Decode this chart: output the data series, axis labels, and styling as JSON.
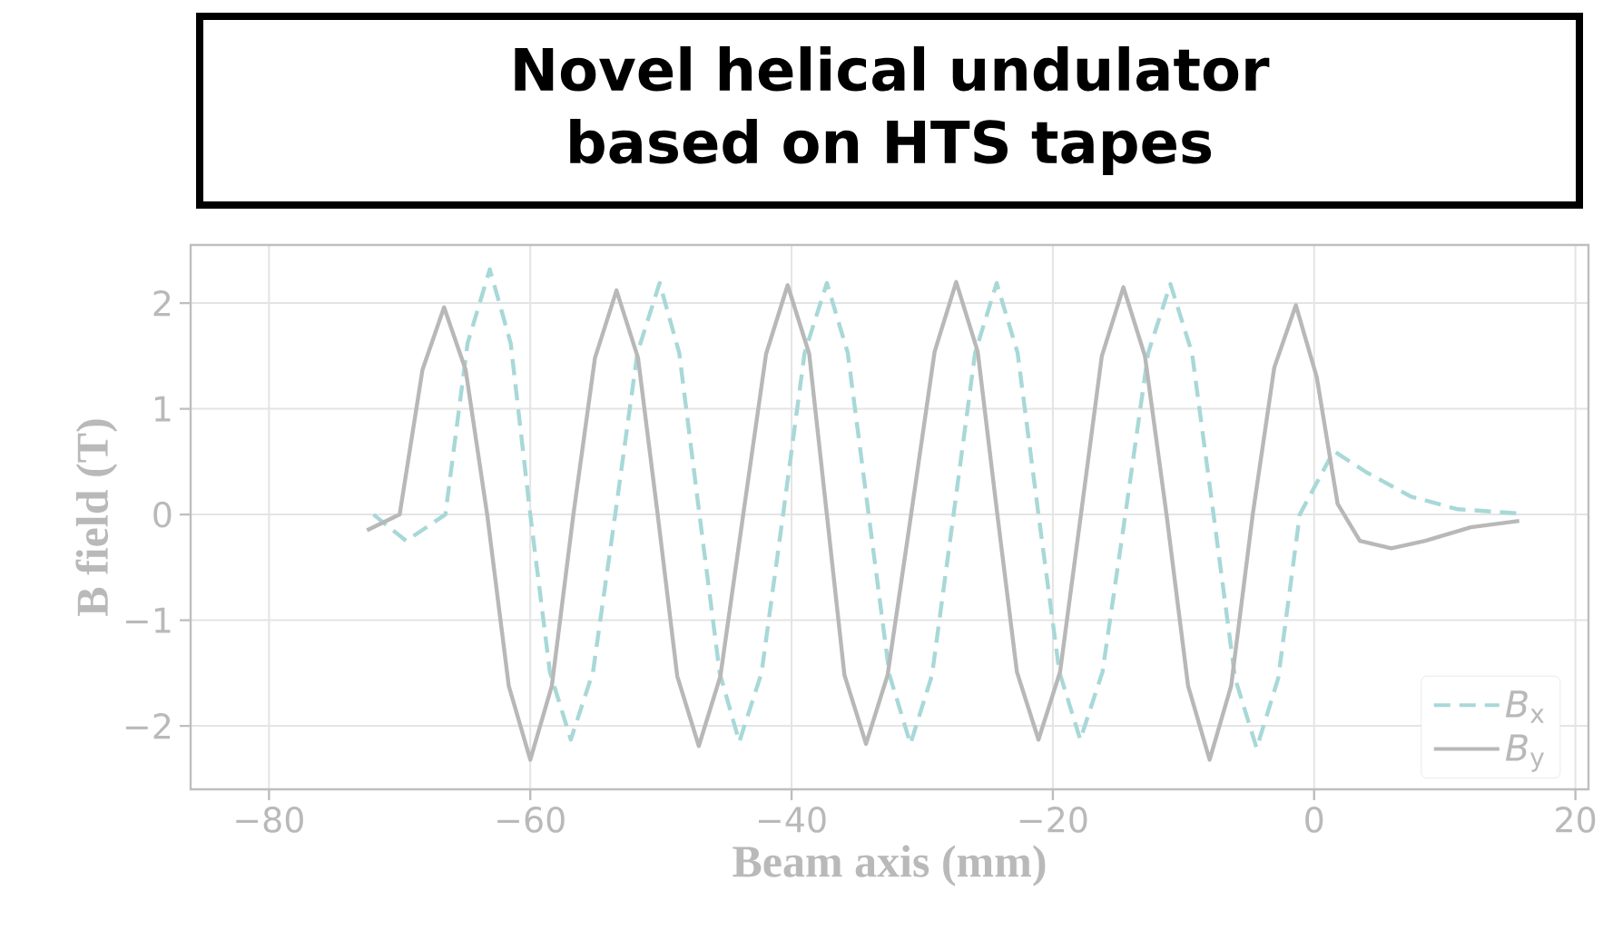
{
  "chart_data": {
    "type": "line",
    "xlabel": "Beam axis (mm)",
    "ylabel": "B field (T)",
    "annotations": [
      "Novel helical undulator based on HTS tapes"
    ],
    "xlim": [
      -86,
      21
    ],
    "ylim": [
      -2.6,
      2.55
    ],
    "xticks": [
      {
        "value": -80,
        "label": "−80"
      },
      {
        "value": -60,
        "label": "−60"
      },
      {
        "value": -40,
        "label": "−40"
      },
      {
        "value": -20,
        "label": "−20"
      },
      {
        "value": 0,
        "label": "0"
      },
      {
        "value": 20,
        "label": "20"
      }
    ],
    "yticks": [
      {
        "value": -2,
        "label": "−2"
      },
      {
        "value": -1,
        "label": "−1"
      },
      {
        "value": 0,
        "label": "0"
      },
      {
        "value": 1,
        "label": "1"
      },
      {
        "value": 2,
        "label": "2"
      }
    ],
    "grid": true,
    "legend": "bottom right",
    "marker": "none",
    "series": [
      {
        "name": "*B*$_{x}$",
        "color": "#a8d8d8",
        "line_style": "dashed",
        "x": [
          -72,
          -69.5,
          -66.5,
          -64.8,
          -63.1,
          -61.5,
          -60,
          -58.5,
          -56.9,
          -55.2,
          -53.5,
          -51.8,
          -50.1,
          -48.6,
          -47.05,
          -45.5,
          -44,
          -42.3,
          -40.65,
          -39,
          -37.3,
          -35.7,
          -34.1,
          -32.5,
          -30.9,
          -29.25,
          -27.6,
          -25.95,
          -24.3,
          -22.7,
          -21.1,
          -19.5,
          -17.9,
          -16.2,
          -14.45,
          -12.7,
          -11,
          -9.35,
          -7.7,
          -6.05,
          -4.4,
          -2.75,
          -1.1,
          1.5,
          4,
          7.4,
          11,
          15.7
        ],
        "values": [
          0,
          -0.25,
          0,
          1.62,
          2.32,
          1.62,
          0,
          -1.49,
          -2.13,
          -1.49,
          0,
          1.53,
          2.19,
          1.53,
          0,
          -1.5,
          -2.15,
          -1.5,
          0,
          1.53,
          2.19,
          1.53,
          0,
          -1.52,
          -2.17,
          -1.52,
          0,
          1.53,
          2.19,
          1.53,
          0,
          -1.49,
          -2.13,
          -1.49,
          0,
          1.53,
          2.18,
          1.53,
          0,
          -1.55,
          -2.21,
          -1.55,
          0,
          0.6,
          0.4,
          0.17,
          0.05,
          0.01
        ]
      },
      {
        "name": "*B*$_{y}$",
        "color": "#b8b8b8",
        "line_style": "solid",
        "x": [
          -72.5,
          -70,
          -68.25,
          -66.6,
          -64.95,
          -63.3,
          -61.65,
          -60,
          -58.35,
          -56.7,
          -55.05,
          -53.4,
          -51.75,
          -50.25,
          -48.75,
          -47.1,
          -45.45,
          -43.7,
          -41.95,
          -40.3,
          -38.65,
          -37.3,
          -35.95,
          -34.3,
          -32.65,
          -30.85,
          -29.05,
          -27.4,
          -25.75,
          -24.25,
          -22.75,
          -21.1,
          -19.45,
          -17.85,
          -16.25,
          -14.6,
          -12.95,
          -11.3,
          -9.65,
          -8,
          -6.35,
          -4.7,
          -3.05,
          -1.4,
          0.2,
          1.8,
          3.5,
          5.9,
          8.5,
          12,
          15.7
        ],
        "values": [
          -0.15,
          0,
          1.37,
          1.96,
          1.37,
          0,
          -1.62,
          -2.32,
          -1.62,
          0,
          1.48,
          2.12,
          1.48,
          0,
          -1.53,
          -2.19,
          -1.53,
          0,
          1.52,
          2.17,
          1.52,
          0,
          -1.52,
          -2.17,
          -1.52,
          0,
          1.54,
          2.2,
          1.54,
          0,
          -1.49,
          -2.13,
          -1.49,
          0,
          1.5,
          2.15,
          1.5,
          0,
          -1.62,
          -2.32,
          -1.62,
          0,
          1.39,
          1.98,
          1.3,
          0.1,
          -0.25,
          -0.32,
          -0.25,
          -0.12,
          -0.06
        ]
      }
    ]
  }
}
